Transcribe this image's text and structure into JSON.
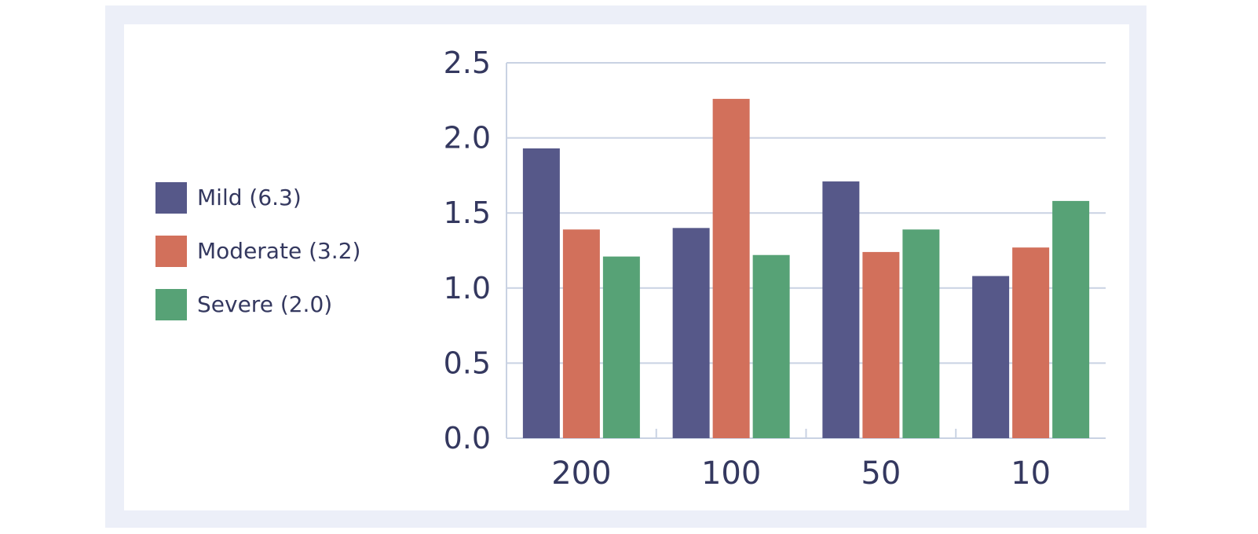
{
  "chart_data": {
    "type": "bar",
    "categories": [
      "200",
      "100",
      "50",
      "10"
    ],
    "series": [
      {
        "name": "Mild (6.3)",
        "color": "#565889",
        "values": [
          1.93,
          1.4,
          1.71,
          1.08
        ]
      },
      {
        "name": "Moderate (3.2)",
        "color": "#d2705b",
        "values": [
          1.39,
          2.26,
          1.24,
          1.27
        ]
      },
      {
        "name": "Severe (2.0)",
        "color": "#57a276",
        "values": [
          1.21,
          1.22,
          1.39,
          1.58
        ]
      }
    ],
    "yticks": [
      "0.0",
      "0.5",
      "1.0",
      "1.5",
      "2.0",
      "2.5"
    ],
    "ylim": [
      0,
      2.5
    ],
    "grid": true,
    "legend_position": "left",
    "title": "",
    "xlabel": "",
    "ylabel": ""
  },
  "colors": {
    "frame": "#eceff8",
    "grid": "#c9d2e3",
    "text": "#34385f"
  }
}
